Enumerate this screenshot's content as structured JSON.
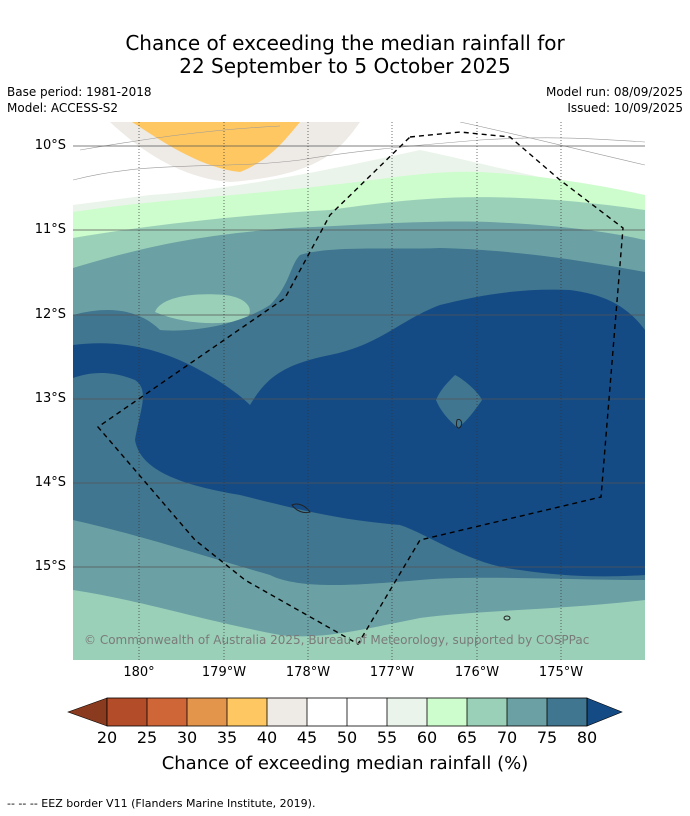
{
  "title": {
    "line1": "Chance of exceeding the median rainfall for",
    "line2": "22 September to 5 October 2025"
  },
  "meta": {
    "base_period": "Base period: 1981-2018",
    "model": "Model: ACCESS-S2",
    "model_run": "Model run: 08/09/2025",
    "issued": "Issued: 10/09/2025"
  },
  "map": {
    "lat_labels": [
      "10°S",
      "11°S",
      "12°S",
      "13°S",
      "14°S",
      "15°S"
    ],
    "lon_labels": [
      "180°",
      "179°W",
      "178°W",
      "177°W",
      "176°W",
      "175°W"
    ],
    "copyright": "© Commonwealth of Australia 2025, Bureau of Meteorology, supported by COSPPac"
  },
  "colorbar": {
    "ticks": [
      "20",
      "25",
      "30",
      "35",
      "40",
      "45",
      "50",
      "55",
      "60",
      "65",
      "70",
      "75",
      "80"
    ],
    "colors": [
      "#8a3a1e",
      "#b34c29",
      "#cf6638",
      "#e3954c",
      "#fec762",
      "#eeeae6",
      "#ffffff",
      "#ffffff",
      "#eaf4ea",
      "#cdfccd",
      "#9bd0b8",
      "#6ba1a4",
      "#40768f",
      "#154b85"
    ],
    "label": "Chance of exceeding median rainfall (%)"
  },
  "footnote": "--  --  -- EEZ border V11 (Flanders Marine Institute, 2019)."
}
